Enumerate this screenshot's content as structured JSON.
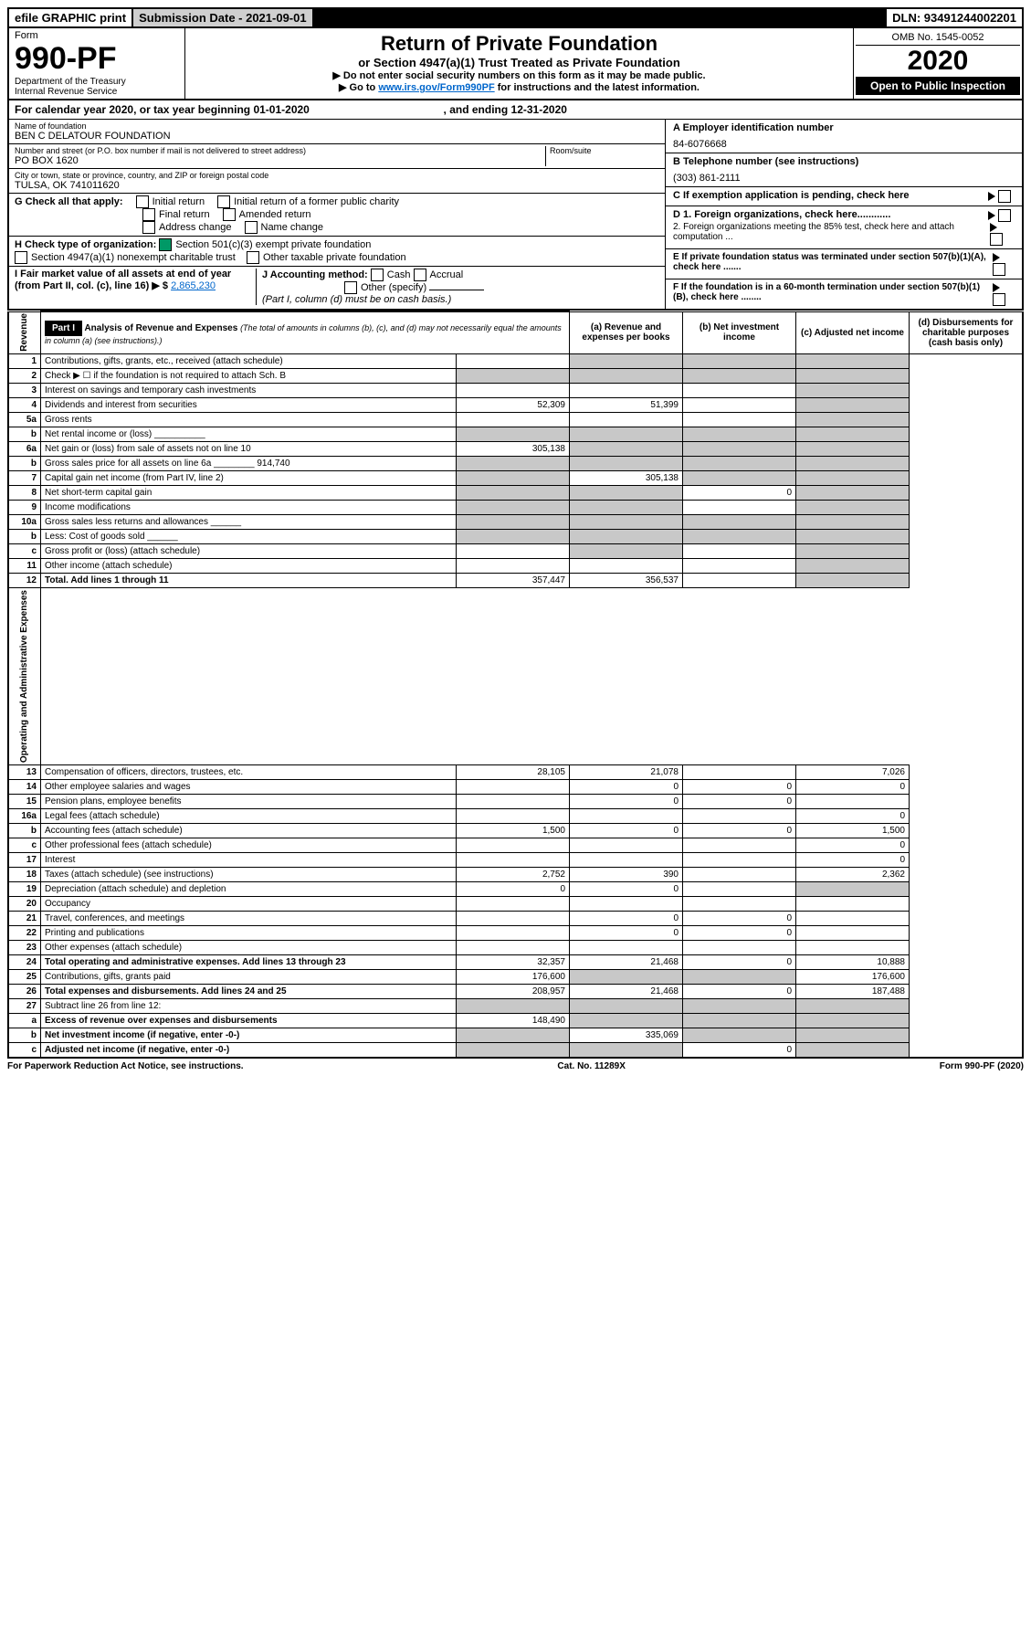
{
  "top": {
    "efile": "efile GRAPHIC print",
    "subdate": "Submission Date - 2021-09-01",
    "dln": "DLN: 93491244002201"
  },
  "header": {
    "form_label": "Form",
    "form_no": "990-PF",
    "dept": "Department of the Treasury",
    "irs": "Internal Revenue Service",
    "title": "Return of Private Foundation",
    "subtitle": "or Section 4947(a)(1) Trust Treated as Private Foundation",
    "warn1": "▶ Do not enter social security numbers on this form as it may be made public.",
    "warn2_pre": "▶ Go to ",
    "warn2_link": "www.irs.gov/Form990PF",
    "warn2_post": " for instructions and the latest information.",
    "omb": "OMB No. 1545-0052",
    "year": "2020",
    "open": "Open to Public Inspection"
  },
  "calendar": {
    "pre": "For calendar year 2020, or tax year beginning ",
    "begin": "01-01-2020",
    "mid": " , and ending ",
    "end": "12-31-2020"
  },
  "id": {
    "name_label": "Name of foundation",
    "name": "BEN C DELATOUR FOUNDATION",
    "addr_label": "Number and street (or P.O. box number if mail is not delivered to street address)",
    "addr": "PO BOX 1620",
    "room_label": "Room/suite",
    "city_label": "City or town, state or province, country, and ZIP or foreign postal code",
    "city": "TULSA, OK  741011620",
    "a_label": "A Employer identification number",
    "a_val": "84-6076668",
    "b_label": "B Telephone number (see instructions)",
    "b_val": "(303) 861-2111",
    "c_label": "C If exemption application is pending, check here",
    "d1": "D 1. Foreign organizations, check here............",
    "d2": "   2. Foreign organizations meeting the 85% test, check here and attach computation ...",
    "e_label": "E  If private foundation status was terminated under section 507(b)(1)(A), check here .......",
    "f_label": "F  If the foundation is in a 60-month termination under section 507(b)(1)(B), check here ........",
    "g_label": "G Check all that apply:",
    "g_opts": [
      "Initial return",
      "Final return",
      "Address change",
      "Initial return of a former public charity",
      "Amended return",
      "Name change"
    ],
    "h_label": "H Check type of organization:",
    "h1": "Section 501(c)(3) exempt private foundation",
    "h2": "Section 4947(a)(1) nonexempt charitable trust",
    "h3": "Other taxable private foundation",
    "i_label": "I Fair market value of all assets at end of year (from Part II, col. (c), line 16) ▶ $",
    "i_val": "2,865,230",
    "j_label": "J Accounting method:",
    "j_opts": [
      "Cash",
      "Accrual"
    ],
    "j_other": "Other (specify)",
    "j_note": "(Part I, column (d) must be on cash basis.)"
  },
  "part1": {
    "label": "Part I",
    "title": "Analysis of Revenue and Expenses",
    "title_note": "(The total of amounts in columns (b), (c), and (d) may not necessarily equal the amounts in column (a) (see instructions).)",
    "col_a": "(a)   Revenue and expenses per books",
    "col_b": "(b)  Net investment income",
    "col_c": "(c)  Adjusted net income",
    "col_d": "(d)  Disbursements for charitable purposes (cash basis only)",
    "revenue_label": "Revenue",
    "opex_label": "Operating and Administrative Expenses"
  },
  "rows": [
    {
      "n": "1",
      "desc": "Contributions, gifts, grants, etc., received (attach schedule)",
      "a": "",
      "b_g": true,
      "c_g": true,
      "d_g": true
    },
    {
      "n": "2",
      "desc": "Check ▶ ☐ if the foundation is not required to attach Sch. B",
      "a": "",
      "a_g": true,
      "b_g": true,
      "c_g": true,
      "d_g": true
    },
    {
      "n": "3",
      "desc": "Interest on savings and temporary cash investments",
      "a": "",
      "b": "",
      "c": "",
      "d_g": true
    },
    {
      "n": "4",
      "desc": "Dividends and interest from securities",
      "a": "52,309",
      "b": "51,399",
      "c": "",
      "d_g": true
    },
    {
      "n": "5a",
      "desc": "Gross rents",
      "a": "",
      "b": "",
      "c": "",
      "d_g": true
    },
    {
      "n": "b",
      "desc": "Net rental income or (loss)  __________",
      "a_g": true,
      "b_g": true,
      "c_g": true,
      "d_g": true
    },
    {
      "n": "6a",
      "desc": "Net gain or (loss) from sale of assets not on line 10",
      "a": "305,138",
      "b_g": true,
      "c_g": true,
      "d_g": true
    },
    {
      "n": "b",
      "desc": "Gross sales price for all assets on line 6a ________ 914,740",
      "a_g": true,
      "b_g": true,
      "c_g": true,
      "d_g": true
    },
    {
      "n": "7",
      "desc": "Capital gain net income (from Part IV, line 2)",
      "a_g": true,
      "b": "305,138",
      "c_g": true,
      "d_g": true
    },
    {
      "n": "8",
      "desc": "Net short-term capital gain",
      "a_g": true,
      "b_g": true,
      "c": "0",
      "d_g": true
    },
    {
      "n": "9",
      "desc": "Income modifications",
      "a_g": true,
      "b_g": true,
      "c": "",
      "d_g": true
    },
    {
      "n": "10a",
      "desc": "Gross sales less returns and allowances  ______",
      "a_g": true,
      "b_g": true,
      "c_g": true,
      "d_g": true
    },
    {
      "n": "b",
      "desc": "Less: Cost of goods sold      ______",
      "a_g": true,
      "b_g": true,
      "c_g": true,
      "d_g": true
    },
    {
      "n": "c",
      "desc": "Gross profit or (loss) (attach schedule)",
      "a": "",
      "b_g": true,
      "c": "",
      "d_g": true
    },
    {
      "n": "11",
      "desc": "Other income (attach schedule)",
      "a": "",
      "b": "",
      "c": "",
      "d_g": true
    },
    {
      "n": "12",
      "desc": "Total. Add lines 1 through 11",
      "bold": true,
      "a": "357,447",
      "b": "356,537",
      "c": "",
      "d_g": true
    }
  ],
  "opex_rows": [
    {
      "n": "13",
      "desc": "Compensation of officers, directors, trustees, etc.",
      "a": "28,105",
      "b": "21,078",
      "c": "",
      "d": "7,026"
    },
    {
      "n": "14",
      "desc": "Other employee salaries and wages",
      "a": "",
      "b": "0",
      "c": "0",
      "d": "0"
    },
    {
      "n": "15",
      "desc": "Pension plans, employee benefits",
      "a": "",
      "b": "0",
      "c": "0",
      "d": ""
    },
    {
      "n": "16a",
      "desc": "Legal fees (attach schedule)",
      "a": "",
      "b": "",
      "c": "",
      "d": "0"
    },
    {
      "n": "b",
      "desc": "Accounting fees (attach schedule)",
      "a": "1,500",
      "b": "0",
      "c": "0",
      "d": "1,500"
    },
    {
      "n": "c",
      "desc": "Other professional fees (attach schedule)",
      "a": "",
      "b": "",
      "c": "",
      "d": "0"
    },
    {
      "n": "17",
      "desc": "Interest",
      "a": "",
      "b": "",
      "c": "",
      "d": "0"
    },
    {
      "n": "18",
      "desc": "Taxes (attach schedule) (see instructions)",
      "a": "2,752",
      "b": "390",
      "c": "",
      "d": "2,362"
    },
    {
      "n": "19",
      "desc": "Depreciation (attach schedule) and depletion",
      "a": "0",
      "b": "0",
      "c": "",
      "d_g": true
    },
    {
      "n": "20",
      "desc": "Occupancy",
      "a": "",
      "b": "",
      "c": "",
      "d": ""
    },
    {
      "n": "21",
      "desc": "Travel, conferences, and meetings",
      "a": "",
      "b": "0",
      "c": "0",
      "d": ""
    },
    {
      "n": "22",
      "desc": "Printing and publications",
      "a": "",
      "b": "0",
      "c": "0",
      "d": ""
    },
    {
      "n": "23",
      "desc": "Other expenses (attach schedule)",
      "a": "",
      "b": "",
      "c": "",
      "d": ""
    },
    {
      "n": "24",
      "desc": "Total operating and administrative expenses. Add lines 13 through 23",
      "bold": true,
      "a": "32,357",
      "b": "21,468",
      "c": "0",
      "d": "10,888"
    },
    {
      "n": "25",
      "desc": "Contributions, gifts, grants paid",
      "a": "176,600",
      "b_g": true,
      "c_g": true,
      "d": "176,600"
    },
    {
      "n": "26",
      "desc": "Total expenses and disbursements. Add lines 24 and 25",
      "bold": true,
      "a": "208,957",
      "b": "21,468",
      "c": "0",
      "d": "187,488"
    },
    {
      "n": "27",
      "desc": "Subtract line 26 from line 12:",
      "a_g": true,
      "b_g": true,
      "c_g": true,
      "d_g": true
    },
    {
      "n": "a",
      "desc": "Excess of revenue over expenses and disbursements",
      "bold": true,
      "a": "148,490",
      "b_g": true,
      "c_g": true,
      "d_g": true
    },
    {
      "n": "b",
      "desc": "Net investment income (if negative, enter -0-)",
      "bold": true,
      "a_g": true,
      "b": "335,069",
      "c_g": true,
      "d_g": true
    },
    {
      "n": "c",
      "desc": "Adjusted net income (if negative, enter -0-)",
      "bold": true,
      "a_g": true,
      "b_g": true,
      "c": "0",
      "d_g": true
    }
  ],
  "footer": {
    "left": "For Paperwork Reduction Act Notice, see instructions.",
    "mid": "Cat. No. 11289X",
    "right": "Form 990-PF (2020)"
  }
}
